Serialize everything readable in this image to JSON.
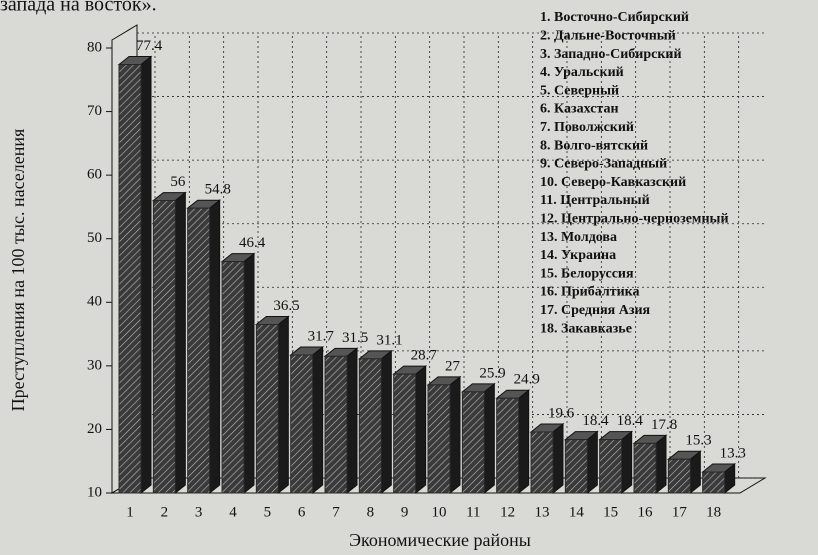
{
  "chart_data": {
    "type": "bar3d",
    "annotations": [
      "запада на восток»."
    ],
    "ylabel": "Преступления на 100 тыс. населения",
    "xlabel": "Экономические районы",
    "categories": [
      "1",
      "2",
      "3",
      "4",
      "5",
      "6",
      "7",
      "8",
      "9",
      "10",
      "11",
      "12",
      "13",
      "14",
      "15",
      "16",
      "17",
      "18"
    ],
    "values": [
      77.4,
      56,
      54.8,
      46.4,
      36.5,
      31.7,
      31.5,
      31.1,
      28.7,
      27,
      25.9,
      24.9,
      19.6,
      18.4,
      18.4,
      17.8,
      15.3,
      13.3
    ],
    "color": "#2a2a2a",
    "ylim": [
      10,
      80
    ],
    "yticks": [
      10,
      20,
      30,
      40,
      50,
      60,
      70,
      80
    ],
    "grid": true,
    "legend_items": [
      "1. Восточно-Сибирский",
      "2. Дальне-Восточный",
      "3. Западно-Сибирский",
      "4. Уральский",
      "5. Северный",
      "6. Казахстан",
      "7. Поволжский",
      "8. Волго-вятский",
      "9. Северо-Западный",
      "10. Северо-Кавказский",
      "11. Центральный",
      "12. Центрально-черноземный",
      "13. Молдова",
      "14. Украина",
      "15. Белоруссия",
      "16. Прибалтика",
      "17. Средняя Азия",
      "18. Закавказье"
    ]
  }
}
